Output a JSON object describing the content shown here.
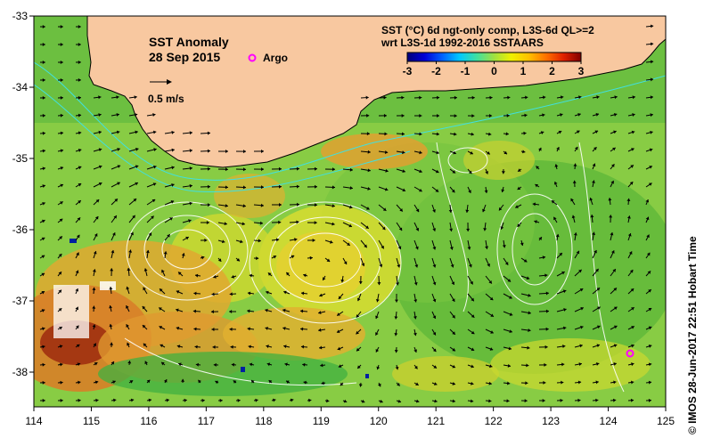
{
  "title": "SST Anomaly",
  "date": "28 Sep 2015",
  "legend": {
    "argo_label": "Argo",
    "vector_scale_label": "0.5 m/s",
    "product_line1": "SST (°C) 6d ngt-only comp, L3S-6d QL>=2",
    "product_line2": "wrt L3S-1d 1992-2016 SSTAARS"
  },
  "colorbar": {
    "min": -3,
    "max": 3,
    "tick_labels": [
      "-3",
      "-2",
      "-1",
      "0",
      "1",
      "2",
      "3"
    ],
    "colors": [
      "#00007a",
      "#0000d8",
      "#0060ff",
      "#00c8ff",
      "#40e0a0",
      "#a0e040",
      "#f0f000",
      "#ffc000",
      "#ff7000",
      "#e02000",
      "#800000"
    ]
  },
  "axes": {
    "lon_ticks": [
      "114",
      "115",
      "116",
      "117",
      "118",
      "119",
      "120",
      "121",
      "122",
      "123",
      "124",
      "125"
    ],
    "lat_ticks": [
      "-33",
      "-34",
      "-35",
      "-36",
      "-37",
      "-38"
    ]
  },
  "credit": "© IMOS 28-Jun-2017 22:51 Hobart Time",
  "colors": {
    "land": "#f8c8a0",
    "ocean_base": "#88cc44",
    "warm_anomaly": "#e8a030",
    "hot_anomaly": "#a03010",
    "argo_marker": "#ff00ff",
    "contour": "#ffffff",
    "coast_contour": "#40e0e0"
  }
}
